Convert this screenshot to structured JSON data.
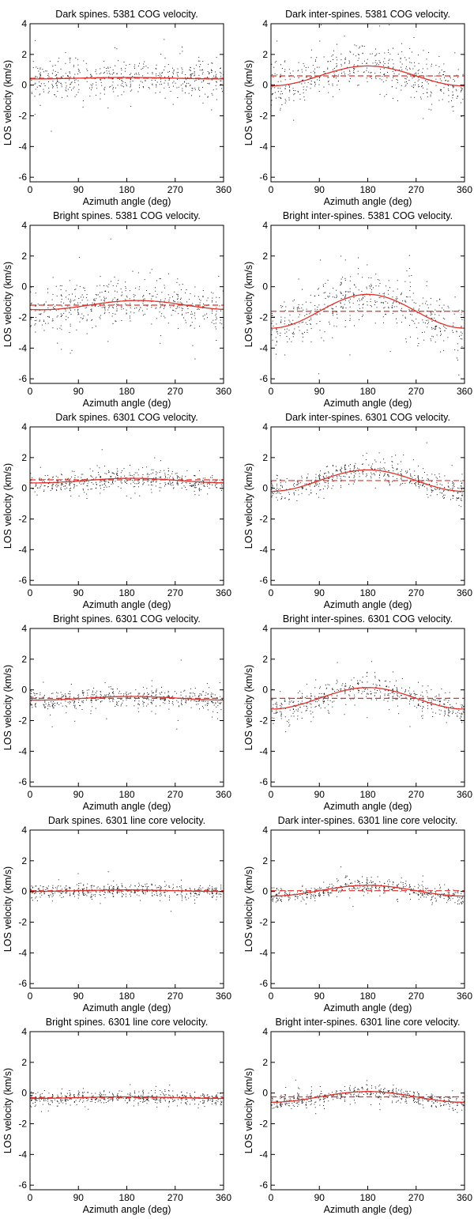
{
  "colors": {
    "fit": "#e0302a",
    "mean": "#e0302a",
    "points": "#1a1a1a"
  },
  "chart_data": [
    {
      "type": "scatter",
      "title": "Dark spines. 5381 COG velocity.",
      "xlabel": "Azimuth angle (deg)",
      "ylabel": "LOS velocity (km/s)",
      "xlim": [
        0,
        360
      ],
      "ylim": [
        -6.3,
        4
      ],
      "xticks": [
        0,
        90,
        180,
        270,
        360
      ],
      "yticks": [
        4,
        2,
        0,
        -2,
        -4,
        -6
      ],
      "fit": {
        "offset": 0.45,
        "amplitude": 0.05,
        "phase_deg": 180
      },
      "mean": 0.45,
      "scatter_sigma": 0.7
    },
    {
      "type": "scatter",
      "title": "Dark inter-spines. 5381 COG velocity.",
      "xlabel": "Azimuth angle (deg)",
      "ylabel": "LOS velocity (km/s)",
      "xlim": [
        0,
        360
      ],
      "ylim": [
        -6.3,
        4
      ],
      "xticks": [
        0,
        90,
        180,
        270,
        360
      ],
      "yticks": [
        4,
        2,
        0,
        -2,
        -4,
        -6
      ],
      "fit": {
        "offset": 0.6,
        "amplitude": 0.65,
        "phase_deg": 180
      },
      "mean": 0.6,
      "scatter_sigma": 0.9
    },
    {
      "type": "scatter",
      "title": "Bright spines. 5381 COG velocity.",
      "xlabel": "Azimuth angle (deg)",
      "ylabel": "LOS velocity (km/s)",
      "xlim": [
        0,
        360
      ],
      "ylim": [
        -6.3,
        4
      ],
      "xticks": [
        0,
        90,
        180,
        270,
        360
      ],
      "yticks": [
        4,
        2,
        0,
        -2,
        -4,
        -6
      ],
      "fit": {
        "offset": -1.2,
        "amplitude": 0.3,
        "phase_deg": 200
      },
      "mean": -1.2,
      "scatter_sigma": 0.9
    },
    {
      "type": "scatter",
      "title": "Bright inter-spines. 5381 COG velocity.",
      "xlabel": "Azimuth angle (deg)",
      "ylabel": "LOS velocity (km/s)",
      "xlim": [
        0,
        360
      ],
      "ylim": [
        -6.3,
        4
      ],
      "xticks": [
        0,
        90,
        180,
        270,
        360
      ],
      "yticks": [
        4,
        2,
        0,
        -2,
        -4,
        -6
      ],
      "fit": {
        "offset": -1.6,
        "amplitude": 1.1,
        "phase_deg": 180
      },
      "mean": -1.6,
      "scatter_sigma": 1.1
    },
    {
      "type": "scatter",
      "title": "Dark spines. 6301 COG velocity.",
      "xlabel": "Azimuth angle (deg)",
      "ylabel": "LOS velocity (km/s)",
      "xlim": [
        0,
        360
      ],
      "ylim": [
        -6.3,
        4
      ],
      "xticks": [
        0,
        90,
        180,
        270,
        360
      ],
      "yticks": [
        4,
        2,
        0,
        -2,
        -4,
        -6
      ],
      "fit": {
        "offset": 0.5,
        "amplitude": 0.15,
        "phase_deg": 190
      },
      "mean": 0.55,
      "scatter_sigma": 0.35
    },
    {
      "type": "scatter",
      "title": "Dark inter-spines. 6301 COG velocity.",
      "xlabel": "Azimuth angle (deg)",
      "ylabel": "LOS velocity (km/s)",
      "xlim": [
        0,
        360
      ],
      "ylim": [
        -6.3,
        4
      ],
      "xticks": [
        0,
        90,
        180,
        270,
        360
      ],
      "yticks": [
        4,
        2,
        0,
        -2,
        -4,
        -6
      ],
      "fit": {
        "offset": 0.5,
        "amplitude": 0.7,
        "phase_deg": 180
      },
      "mean": 0.5,
      "scatter_sigma": 0.45
    },
    {
      "type": "scatter",
      "title": "Bright spines. 6301 COG velocity.",
      "xlabel": "Azimuth angle (deg)",
      "ylabel": "LOS velocity (km/s)",
      "xlim": [
        0,
        360
      ],
      "ylim": [
        -6.3,
        4
      ],
      "xticks": [
        0,
        90,
        180,
        270,
        360
      ],
      "yticks": [
        4,
        2,
        0,
        -2,
        -4,
        -6
      ],
      "fit": {
        "offset": -0.55,
        "amplitude": 0.12,
        "phase_deg": 190
      },
      "mean": -0.55,
      "scatter_sigma": 0.4
    },
    {
      "type": "scatter",
      "title": "Bright inter-spines. 6301 COG velocity.",
      "xlabel": "Azimuth angle (deg)",
      "ylabel": "LOS velocity (km/s)",
      "xlim": [
        0,
        360
      ],
      "ylim": [
        -6.3,
        4
      ],
      "xticks": [
        0,
        90,
        180,
        270,
        360
      ],
      "yticks": [
        4,
        2,
        0,
        -2,
        -4,
        -6
      ],
      "fit": {
        "offset": -0.55,
        "amplitude": 0.7,
        "phase_deg": 180
      },
      "mean": -0.55,
      "scatter_sigma": 0.5
    },
    {
      "type": "scatter",
      "title": "Dark spines. 6301 line core velocity.",
      "xlabel": "Azimuth angle (deg)",
      "ylabel": "LOS velocity (km/s)",
      "xlim": [
        0,
        360
      ],
      "ylim": [
        -6.3,
        4
      ],
      "xticks": [
        0,
        90,
        180,
        270,
        360
      ],
      "yticks": [
        4,
        2,
        0,
        -2,
        -4,
        -6
      ],
      "fit": {
        "offset": 0.05,
        "amplitude": 0.05,
        "phase_deg": 180
      },
      "mean": 0.05,
      "scatter_sigma": 0.25
    },
    {
      "type": "scatter",
      "title": "Dark inter-spines. 6301 line core velocity.",
      "xlabel": "Azimuth angle (deg)",
      "ylabel": "LOS velocity (km/s)",
      "xlim": [
        0,
        360
      ],
      "ylim": [
        -6.3,
        4
      ],
      "xticks": [
        0,
        90,
        180,
        270,
        360
      ],
      "yticks": [
        4,
        2,
        0,
        -2,
        -4,
        -6
      ],
      "fit": {
        "offset": 0.05,
        "amplitude": 0.35,
        "phase_deg": 180
      },
      "mean": 0.05,
      "scatter_sigma": 0.3
    },
    {
      "type": "scatter",
      "title": "Bright spines. 6301 line core velocity.",
      "xlabel": "Azimuth angle (deg)",
      "ylabel": "LOS velocity (km/s)",
      "xlim": [
        0,
        360
      ],
      "ylim": [
        -6.3,
        4
      ],
      "xticks": [
        0,
        90,
        180,
        270,
        360
      ],
      "yticks": [
        4,
        2,
        0,
        -2,
        -4,
        -6
      ],
      "fit": {
        "offset": -0.3,
        "amplitude": 0.05,
        "phase_deg": 180
      },
      "mean": -0.3,
      "scatter_sigma": 0.25
    },
    {
      "type": "scatter",
      "title": "Bright inter-spines. 6301 line core velocity.",
      "xlabel": "Azimuth angle (deg)",
      "ylabel": "LOS velocity (km/s)",
      "xlim": [
        0,
        360
      ],
      "ylim": [
        -6.3,
        4
      ],
      "xticks": [
        0,
        90,
        180,
        270,
        360
      ],
      "yticks": [
        4,
        2,
        0,
        -2,
        -4,
        -6
      ],
      "fit": {
        "offset": -0.25,
        "amplitude": 0.35,
        "phase_deg": 180
      },
      "mean": -0.25,
      "scatter_sigma": 0.3
    }
  ]
}
